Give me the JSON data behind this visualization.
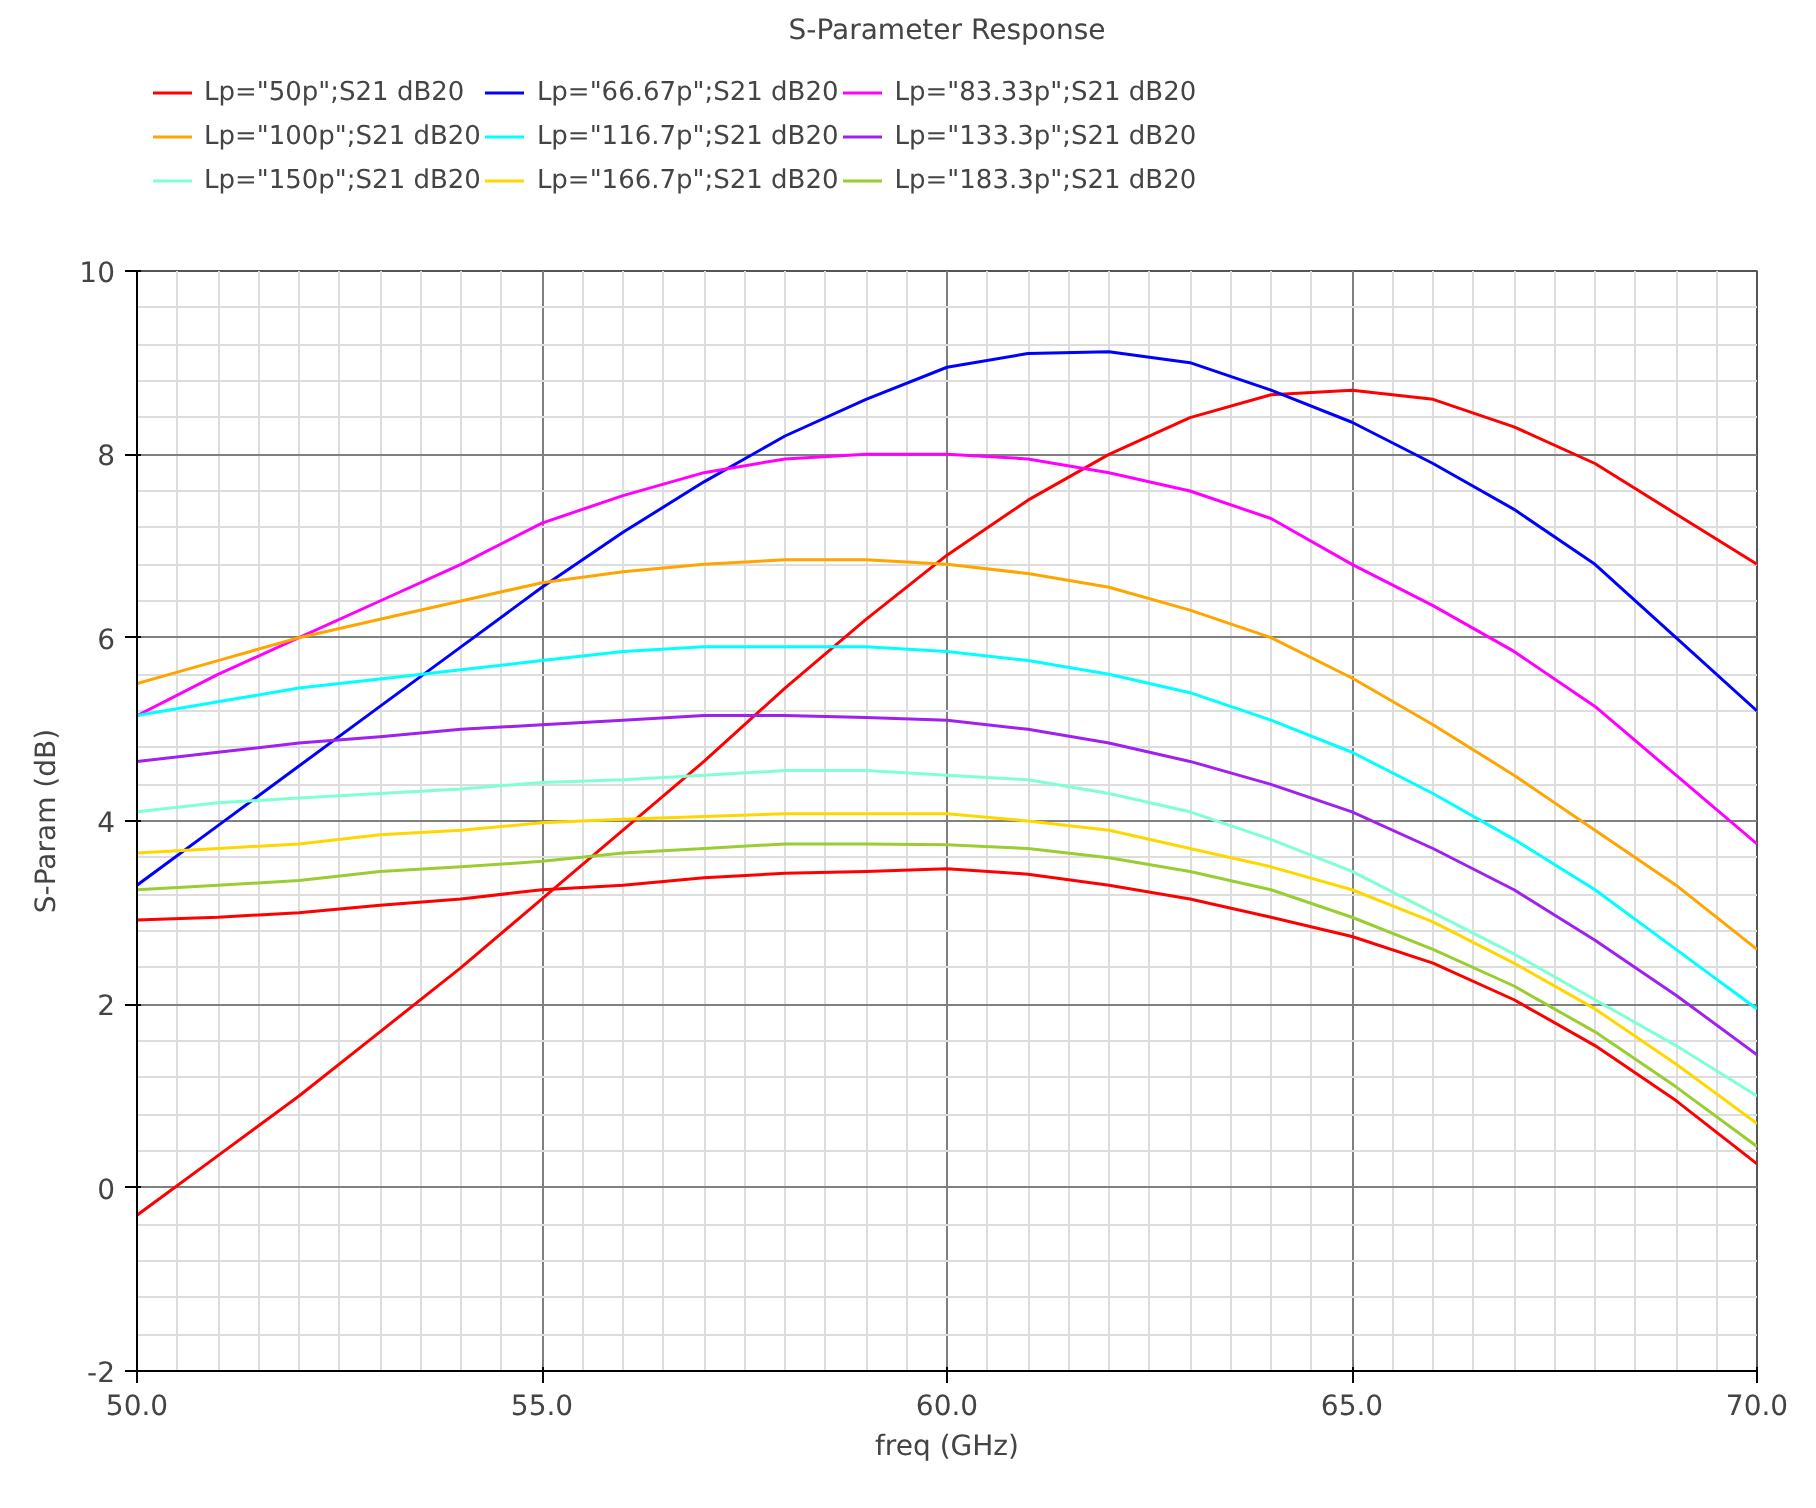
{
  "chart_data": {
    "type": "line",
    "title": "S-Parameter Response",
    "xlabel": "freq (GHz)",
    "ylabel": "S-Param (dB)",
    "x": [
      50,
      51,
      52,
      53,
      54,
      55,
      56,
      57,
      58,
      59,
      60,
      61,
      62,
      63,
      64,
      65,
      66,
      67,
      68,
      69,
      70
    ],
    "xlim": [
      50,
      70
    ],
    "ylim": [
      -2,
      10
    ],
    "xticks": [
      {
        "value": 50,
        "label": "50.0"
      },
      {
        "value": 55,
        "label": "55.0"
      },
      {
        "value": 60,
        "label": "60.0"
      },
      {
        "value": 65,
        "label": "65.0"
      },
      {
        "value": 70,
        "label": "70.0"
      }
    ],
    "yticks": [
      -2,
      0,
      2,
      4,
      6,
      8,
      10
    ],
    "grid": true,
    "legend": "top",
    "marker": "none",
    "line_style": "solid",
    "series": [
      {
        "name": "Lp=\"50p\";S21 dB20",
        "color": "#ff0000",
        "values": [
          -0.3,
          0.35,
          1.0,
          1.7,
          2.4,
          3.15,
          3.9,
          4.65,
          5.45,
          6.2,
          6.9,
          7.5,
          8.0,
          8.4,
          8.65,
          8.7,
          8.6,
          8.3,
          7.9,
          7.35,
          6.8
        ]
      },
      {
        "name": "Lp=\"66.67p\";S21 dB20",
        "color": "#0000ff",
        "values": [
          3.3,
          3.95,
          4.6,
          5.25,
          5.9,
          6.55,
          7.15,
          7.7,
          8.2,
          8.6,
          8.95,
          9.1,
          9.12,
          9.0,
          8.7,
          8.35,
          7.9,
          7.4,
          6.8,
          6.0,
          5.2
        ]
      },
      {
        "name": "Lp=\"83.33p\";S21 dB20",
        "color": "#ff00ff",
        "values": [
          5.15,
          5.6,
          6.0,
          6.4,
          6.8,
          7.25,
          7.55,
          7.8,
          7.95,
          8.0,
          8.0,
          7.95,
          7.8,
          7.6,
          7.3,
          6.8,
          6.35,
          5.85,
          5.25,
          4.5,
          3.75
        ]
      },
      {
        "name": "Lp=\"100p\";S21 dB20",
        "color": "#ffa500",
        "values": [
          5.5,
          5.75,
          6.0,
          6.2,
          6.4,
          6.6,
          6.72,
          6.8,
          6.85,
          6.85,
          6.8,
          6.7,
          6.55,
          6.3,
          6.0,
          5.56,
          5.05,
          4.5,
          3.9,
          3.3,
          2.6
        ]
      },
      {
        "name": "Lp=\"116.7p\";S21 dB20",
        "color": "#00ffff",
        "values": [
          5.15,
          5.3,
          5.45,
          5.55,
          5.65,
          5.75,
          5.85,
          5.9,
          5.9,
          5.9,
          5.85,
          5.75,
          5.6,
          5.4,
          5.1,
          4.75,
          4.3,
          3.8,
          3.25,
          2.6,
          1.95
        ]
      },
      {
        "name": "Lp=\"133.3p\";S21 dB20",
        "color": "#a020f0",
        "values": [
          4.65,
          4.75,
          4.85,
          4.92,
          5.0,
          5.05,
          5.1,
          5.15,
          5.15,
          5.13,
          5.1,
          5.0,
          4.85,
          4.65,
          4.4,
          4.1,
          3.7,
          3.25,
          2.7,
          2.1,
          1.45
        ]
      },
      {
        "name": "Lp=\"150p\";S21 dB20",
        "color": "#7fffd4",
        "values": [
          4.1,
          4.2,
          4.25,
          4.3,
          4.35,
          4.42,
          4.45,
          4.5,
          4.55,
          4.55,
          4.5,
          4.45,
          4.3,
          4.1,
          3.8,
          3.45,
          3.0,
          2.55,
          2.05,
          1.55,
          1.0
        ]
      },
      {
        "name": "Lp=\"166.7p\";S21 dB20",
        "color": "#ffd700",
        "values": [
          3.65,
          3.7,
          3.75,
          3.85,
          3.9,
          3.98,
          4.02,
          4.05,
          4.08,
          4.08,
          4.08,
          4.0,
          3.9,
          3.7,
          3.5,
          3.25,
          2.9,
          2.45,
          1.95,
          1.35,
          0.7
        ]
      },
      {
        "name": "Lp=\"183.3p\";S21 dB20",
        "color": "#9acd32",
        "values": [
          3.25,
          3.3,
          3.35,
          3.45,
          3.5,
          3.56,
          3.65,
          3.7,
          3.75,
          3.75,
          3.74,
          3.7,
          3.6,
          3.45,
          3.25,
          2.95,
          2.6,
          2.2,
          1.7,
          1.1,
          0.45
        ]
      },
      {
        "color": "#ff0000",
        "values": [
          2.92,
          2.95,
          3.0,
          3.08,
          3.15,
          3.25,
          3.3,
          3.38,
          3.43,
          3.45,
          3.48,
          3.42,
          3.3,
          3.15,
          2.95,
          2.74,
          2.45,
          2.05,
          1.55,
          0.95,
          0.26
        ]
      }
    ]
  }
}
